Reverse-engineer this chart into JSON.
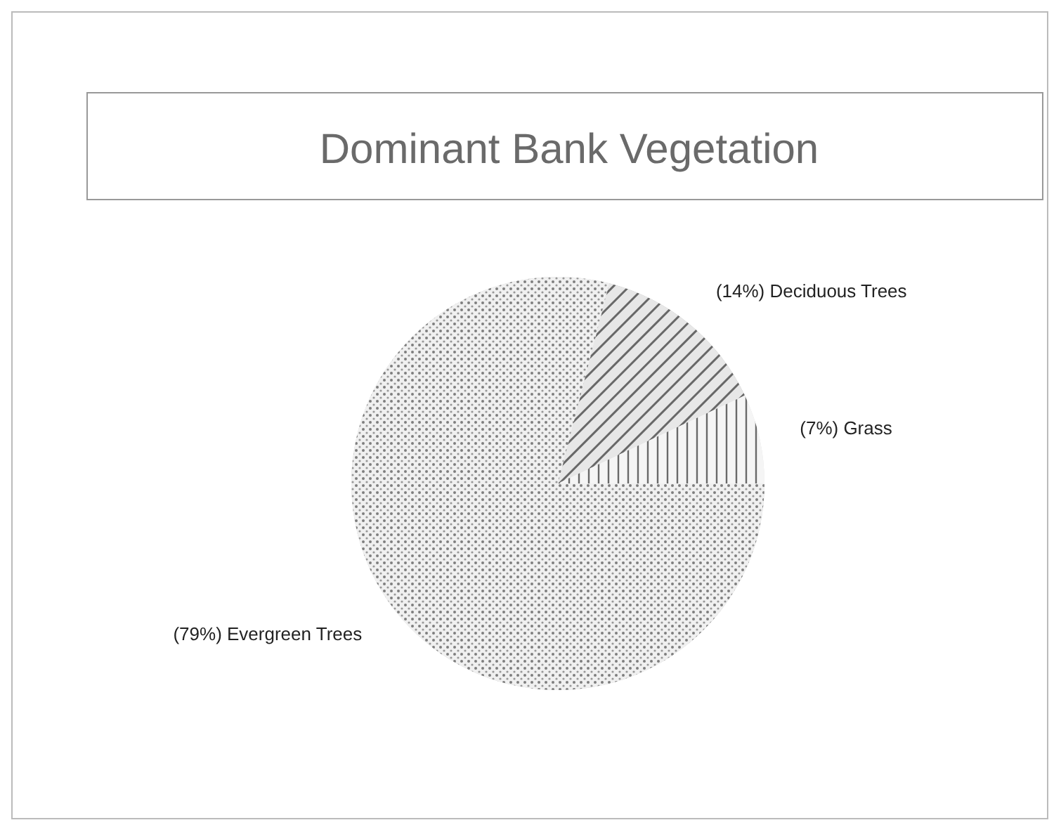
{
  "chart_data": {
    "type": "pie",
    "title": "Dominant Bank Vegetation",
    "categories": [
      "Deciduous Trees",
      "Grass",
      "Evergreen Trees"
    ],
    "values": [
      14,
      7,
      79
    ],
    "colors": [
      "#a0a0a0",
      "#d8d8d8",
      "#c4c4c4"
    ],
    "value_labels": [
      "(14%)",
      "(7%)",
      "(79%)"
    ]
  }
}
